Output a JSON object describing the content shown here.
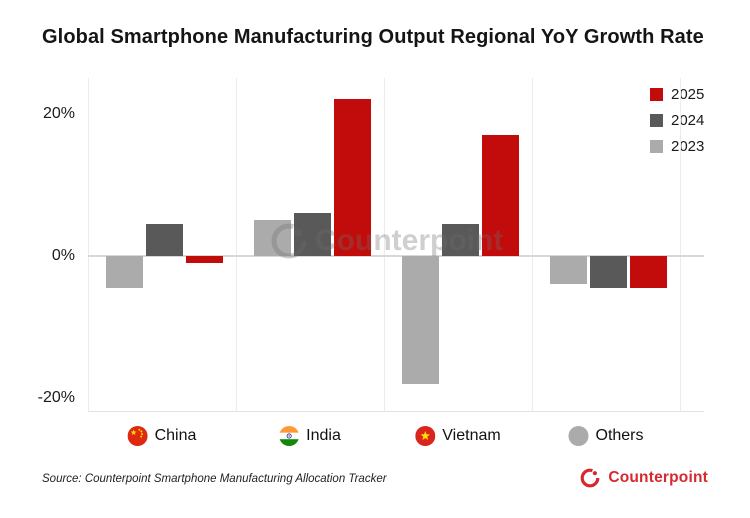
{
  "title": "Global Smartphone Manufacturing Output Regional YoY Growth Rate",
  "source_note": "Source: Counterpoint Smartphone Manufacturing Allocation Tracker",
  "watermark_text": "Counterpoint",
  "logo_text": "Counterpoint",
  "legend": [
    {
      "label": "2025",
      "color": "#c20b0b"
    },
    {
      "label": "2024",
      "color": "#595959"
    },
    {
      "label": "2023",
      "color": "#ababab"
    }
  ],
  "y_ticks": [
    {
      "label": "20%",
      "value": 20
    },
    {
      "label": "0%",
      "value": 0
    },
    {
      "label": "-20%",
      "value": -20
    }
  ],
  "categories": [
    {
      "label": "China",
      "flag": "china"
    },
    {
      "label": "India",
      "flag": "india"
    },
    {
      "label": "Vietnam",
      "flag": "vietnam"
    },
    {
      "label": "Others",
      "flag": "gray-circle"
    }
  ],
  "colors": {
    "red": "#c20b0b",
    "dark_gray": "#595959",
    "light_gray": "#ababab",
    "brand_red": "#d7282f",
    "grid": "#ececec",
    "zero_line": "#d8d8d8"
  },
  "chart_data": {
    "type": "bar",
    "title": "Global Smartphone Manufacturing Output Regional YoY Growth Rate",
    "categories": [
      "China",
      "India",
      "Vietnam",
      "Others"
    ],
    "series": [
      {
        "name": "2023",
        "color_key": "light_gray",
        "values": [
          -4.5,
          5,
          -18,
          -4
        ]
      },
      {
        "name": "2024",
        "color_key": "dark_gray",
        "values": [
          4.5,
          6,
          4.5,
          -4.5
        ]
      },
      {
        "name": "2025",
        "color_key": "red",
        "values": [
          -1,
          22,
          17,
          -4.5
        ]
      }
    ],
    "y_unit": "%",
    "ylim": [
      -22,
      25
    ],
    "xlabel": "",
    "ylabel": "",
    "legend_position": "top-right",
    "grid": "vertical panel separators and zero line"
  }
}
